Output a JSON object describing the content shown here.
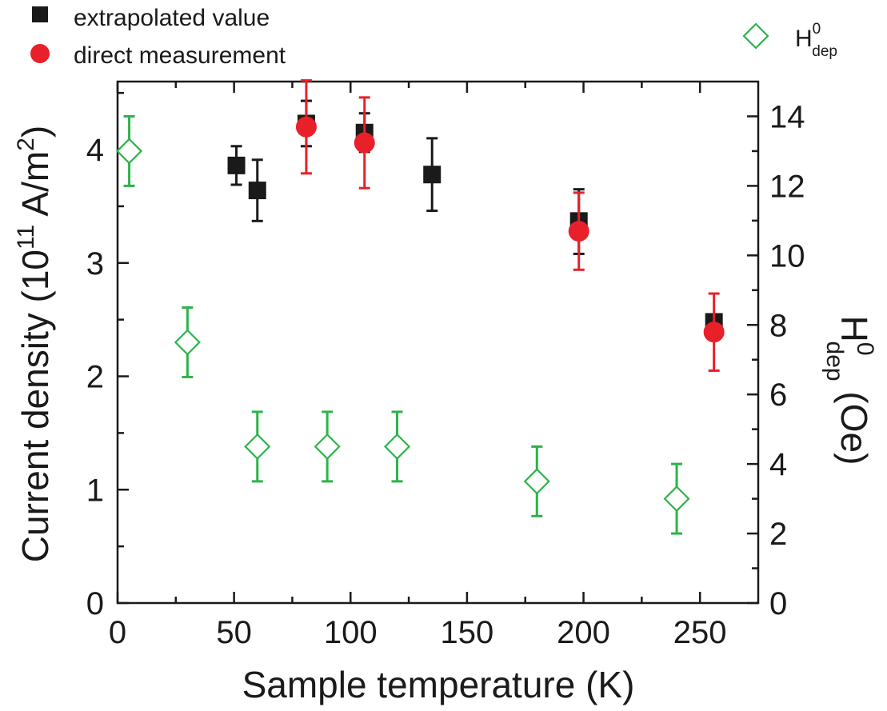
{
  "chart_data": {
    "type": "scatter",
    "xlabel": "Sample temperature (K)",
    "ylabel": {
      "prefix": "Current density (10",
      "sup1": "11",
      "mid": " A/m",
      "sup2": "2",
      "suffix": ")"
    },
    "y2label": {
      "main": "H",
      "sup": "0",
      "sub": "dep",
      "suffix": " (Oe)"
    },
    "xlim": [
      0,
      275
    ],
    "ylim": [
      0,
      4.6
    ],
    "y2lim": [
      0,
      15
    ],
    "xticks": [
      "0",
      "50",
      "100",
      "150",
      "200",
      "250"
    ],
    "yticks": [
      "0",
      "1",
      "2",
      "3",
      "4"
    ],
    "y2ticks": [
      "0",
      "2",
      "4",
      "6",
      "8",
      "10",
      "12",
      "14"
    ],
    "grid": false,
    "legend_left": [
      "extrapolated value",
      "direct measurement"
    ],
    "legend_right": {
      "main": "H",
      "sup": "0",
      "sub": "dep"
    },
    "colors": {
      "extrapolated": "#1a1a1a",
      "direct": "#e8202a",
      "hdep": "#2db34a"
    },
    "series": [
      {
        "name": "extrapolated value",
        "axis": "left",
        "marker": "square",
        "points": [
          {
            "x": 51,
            "y": 3.86,
            "lo": 3.69,
            "hi": 4.03
          },
          {
            "x": 60,
            "y": 3.64,
            "lo": 3.37,
            "hi": 3.91
          },
          {
            "x": 81,
            "y": 4.23,
            "lo": 4.03,
            "hi": 4.43
          },
          {
            "x": 106,
            "y": 4.15,
            "lo": 3.98,
            "hi": 4.32
          },
          {
            "x": 135,
            "y": 3.78,
            "lo": 3.46,
            "hi": 4.1
          },
          {
            "x": 198,
            "y": 3.37,
            "lo": 3.08,
            "hi": 3.65
          },
          {
            "x": 256,
            "y": 2.48,
            "lo": 2.48,
            "hi": 2.48
          }
        ]
      },
      {
        "name": "direct measurement",
        "axis": "left",
        "marker": "circle",
        "points": [
          {
            "x": 81,
            "y": 4.2,
            "lo": 3.79,
            "hi": 4.61
          },
          {
            "x": 106,
            "y": 4.06,
            "lo": 3.66,
            "hi": 4.46
          },
          {
            "x": 198,
            "y": 3.28,
            "lo": 2.94,
            "hi": 3.62
          },
          {
            "x": 256,
            "y": 2.39,
            "lo": 2.05,
            "hi": 2.73
          }
        ]
      },
      {
        "name": "H0dep",
        "axis": "right",
        "marker": "diamond",
        "points": [
          {
            "x": 5,
            "y": 13.0,
            "lo": 12.0,
            "hi": 14.0
          },
          {
            "x": 30,
            "y": 7.5,
            "lo": 6.5,
            "hi": 8.5
          },
          {
            "x": 60,
            "y": 4.5,
            "lo": 3.5,
            "hi": 5.5
          },
          {
            "x": 90,
            "y": 4.5,
            "lo": 3.5,
            "hi": 5.5
          },
          {
            "x": 120,
            "y": 4.5,
            "lo": 3.5,
            "hi": 5.5
          },
          {
            "x": 180,
            "y": 3.5,
            "lo": 2.5,
            "hi": 4.5
          },
          {
            "x": 240,
            "y": 3.0,
            "lo": 2.0,
            "hi": 4.0
          }
        ]
      }
    ]
  }
}
